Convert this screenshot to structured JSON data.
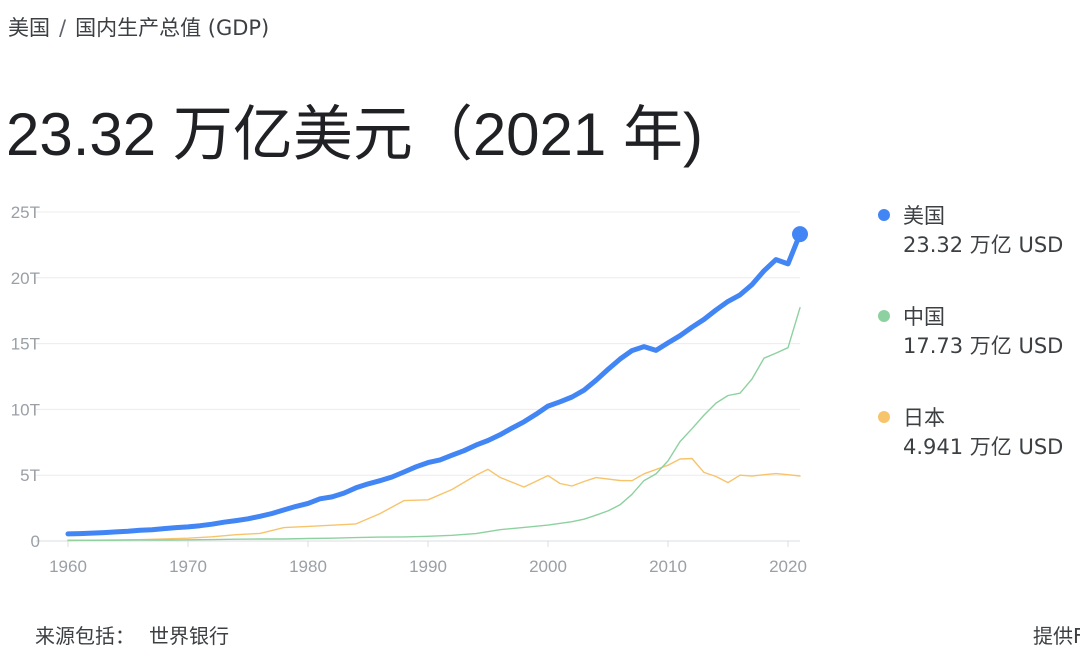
{
  "breadcrumb": {
    "country": "美国",
    "separator": "/",
    "indicator": "国内生产总值 (GDP)"
  },
  "headline": "23.32 万亿美元（2021 年)",
  "legend": [
    {
      "name": "美国",
      "value": "23.32 万亿 USD",
      "color": "#4285f4"
    },
    {
      "name": "中国",
      "value": "17.73 万亿 USD",
      "color": "#8ed1a0"
    },
    {
      "name": "日本",
      "value": "4.941 万亿 USD",
      "color": "#f7c46c"
    }
  ],
  "footer": {
    "source_label": "来源包括：",
    "source_name": "世界银行",
    "provider_text": "提供F"
  },
  "chart_data": {
    "type": "line",
    "xlim": [
      1960,
      2021
    ],
    "ylim": [
      0,
      25
    ],
    "y_ticks": [
      0,
      5,
      10,
      15,
      20,
      25
    ],
    "y_tick_labels": [
      "0",
      "5T",
      "10T",
      "15T",
      "20T",
      "25T"
    ],
    "x_ticks": [
      1960,
      1970,
      1980,
      1990,
      2000,
      2010,
      2020
    ],
    "x_tick_labels": [
      "1960",
      "1970",
      "1980",
      "1990",
      "2000",
      "2010",
      "2020"
    ],
    "grid": true,
    "legend_position": "right",
    "series": [
      {
        "name": "美国",
        "color": "#4285f4",
        "x": [
          1960,
          1961,
          1962,
          1963,
          1964,
          1965,
          1966,
          1967,
          1968,
          1969,
          1970,
          1971,
          1972,
          1973,
          1974,
          1975,
          1976,
          1977,
          1978,
          1979,
          1980,
          1981,
          1982,
          1983,
          1984,
          1985,
          1986,
          1987,
          1988,
          1989,
          1990,
          1991,
          1992,
          1993,
          1994,
          1995,
          1996,
          1997,
          1998,
          1999,
          2000,
          2001,
          2002,
          2003,
          2004,
          2005,
          2006,
          2007,
          2008,
          2009,
          2010,
          2011,
          2012,
          2013,
          2014,
          2015,
          2016,
          2017,
          2018,
          2019,
          2020,
          2021
        ],
        "values": [
          0.54,
          0.56,
          0.6,
          0.64,
          0.69,
          0.74,
          0.82,
          0.86,
          0.94,
          1.02,
          1.07,
          1.16,
          1.28,
          1.43,
          1.55,
          1.69,
          1.88,
          2.09,
          2.36,
          2.63,
          2.86,
          3.21,
          3.35,
          3.64,
          4.04,
          4.34,
          4.58,
          4.86,
          5.24,
          5.64,
          5.96,
          6.16,
          6.52,
          6.86,
          7.29,
          7.64,
          8.07,
          8.58,
          9.06,
          9.63,
          10.25,
          10.58,
          10.94,
          11.46,
          12.21,
          13.04,
          13.82,
          14.47,
          14.77,
          14.48,
          15.05,
          15.6,
          16.25,
          16.84,
          17.55,
          18.21,
          18.7,
          19.48,
          20.53,
          21.38,
          21.06,
          23.32
        ]
      },
      {
        "name": "中国",
        "color": "#8ed1a0",
        "x": [
          1960,
          1962,
          1964,
          1966,
          1968,
          1970,
          1972,
          1974,
          1976,
          1978,
          1980,
          1982,
          1984,
          1986,
          1988,
          1990,
          1992,
          1994,
          1996,
          1998,
          2000,
          2002,
          2003,
          2004,
          2005,
          2006,
          2007,
          2008,
          2009,
          2010,
          2011,
          2012,
          2013,
          2014,
          2015,
          2016,
          2017,
          2018,
          2019,
          2020,
          2021
        ],
        "values": [
          0.06,
          0.05,
          0.06,
          0.08,
          0.07,
          0.09,
          0.11,
          0.14,
          0.15,
          0.15,
          0.19,
          0.21,
          0.26,
          0.3,
          0.31,
          0.36,
          0.43,
          0.56,
          0.86,
          1.03,
          1.21,
          1.47,
          1.66,
          1.96,
          2.29,
          2.75,
          3.55,
          4.59,
          5.1,
          6.09,
          7.55,
          8.53,
          9.57,
          10.48,
          11.06,
          11.23,
          12.31,
          13.89,
          14.28,
          14.69,
          17.73
        ]
      },
      {
        "name": "日本",
        "color": "#f7c46c",
        "x": [
          1960,
          1962,
          1964,
          1966,
          1968,
          1970,
          1972,
          1974,
          1976,
          1978,
          1980,
          1982,
          1984,
          1986,
          1988,
          1990,
          1992,
          1993,
          1994,
          1995,
          1996,
          1998,
          2000,
          2001,
          2002,
          2003,
          2004,
          2006,
          2007,
          2008,
          2010,
          2011,
          2012,
          2013,
          2014,
          2015,
          2016,
          2017,
          2018,
          2019,
          2020,
          2021
        ],
        "values": [
          0.04,
          0.06,
          0.08,
          0.1,
          0.15,
          0.21,
          0.32,
          0.48,
          0.58,
          1.02,
          1.11,
          1.2,
          1.3,
          2.08,
          3.07,
          3.13,
          3.91,
          4.45,
          4.99,
          5.45,
          4.83,
          4.1,
          4.97,
          4.37,
          4.18,
          4.52,
          4.82,
          4.6,
          4.58,
          5.11,
          5.76,
          6.23,
          6.27,
          5.21,
          4.9,
          4.44,
          5.0,
          4.93,
          5.04,
          5.12,
          5.04,
          4.94
        ]
      }
    ]
  }
}
